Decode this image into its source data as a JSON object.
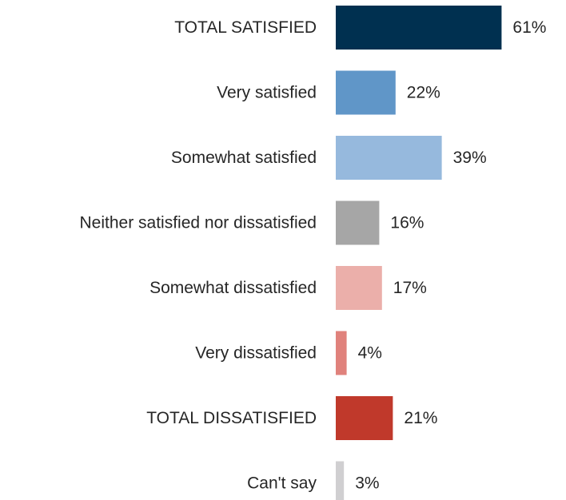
{
  "chart_data": {
    "type": "bar",
    "orientation": "horizontal",
    "categories": [
      "TOTAL SATISFIED",
      "Very satisfied",
      "Somewhat satisfied",
      "Neither satisfied nor dissatisfied",
      "Somewhat dissatisfied",
      "Very dissatisfied",
      "TOTAL DISSATISFIED",
      "Can't say"
    ],
    "values": [
      61,
      22,
      39,
      16,
      17,
      4,
      21,
      3
    ],
    "value_labels": [
      "61%",
      "22%",
      "39%",
      "16%",
      "17%",
      "4%",
      "21%",
      "3%"
    ],
    "colors": [
      "#003050",
      "#6096c8",
      "#96b9dd",
      "#a6a6a6",
      "#ebafaa",
      "#e0827c",
      "#c0392b",
      "#d0cfd1"
    ],
    "unit": "%",
    "grid": false,
    "legend": "none"
  }
}
